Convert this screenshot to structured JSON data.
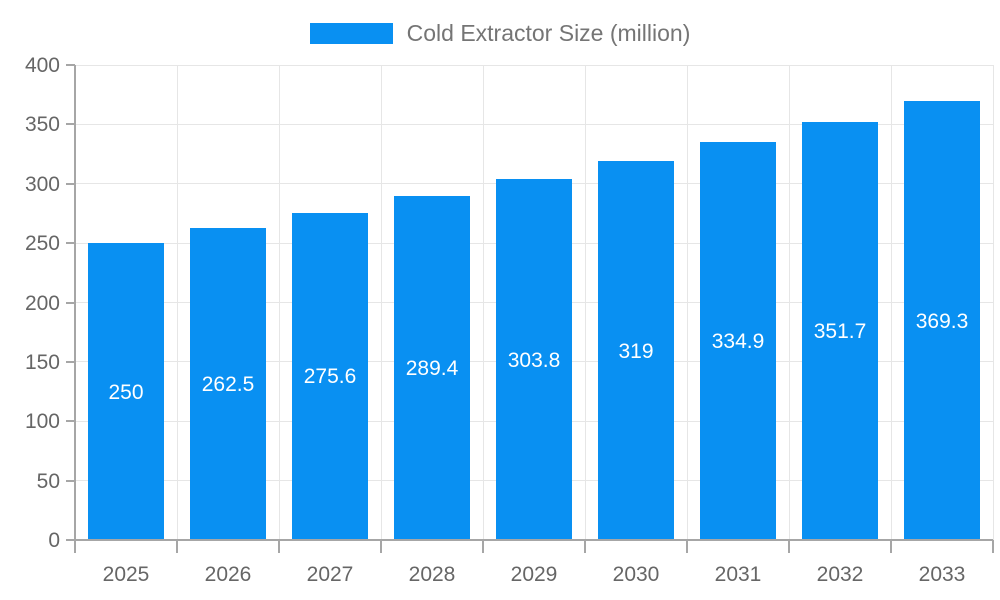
{
  "chart_data": {
    "type": "bar",
    "title": "Cold Extractor Size (million)",
    "categories": [
      "2025",
      "2026",
      "2027",
      "2028",
      "2029",
      "2030",
      "2031",
      "2032",
      "2033"
    ],
    "series": [
      {
        "name": "Cold Extractor Size (million)",
        "values": [
          250,
          262.5,
          275.6,
          289.4,
          303.8,
          319,
          334.9,
          351.7,
          369.3
        ]
      }
    ],
    "value_labels": [
      "250",
      "262.5",
      "275.6",
      "289.4",
      "303.8",
      "319",
      "334.9",
      "351.7",
      "369.3"
    ],
    "xlabel": "",
    "ylabel": "",
    "ylim": [
      0,
      400
    ],
    "ytick_step": 50,
    "grid": "both",
    "legend_position": "top-center"
  },
  "colors": {
    "bar": "#0990f2",
    "grid": "#e6e6e6",
    "axis": "#a6a6a6",
    "axis_text": "#666666",
    "title_text": "#757575",
    "value_text": "#ffffff"
  }
}
